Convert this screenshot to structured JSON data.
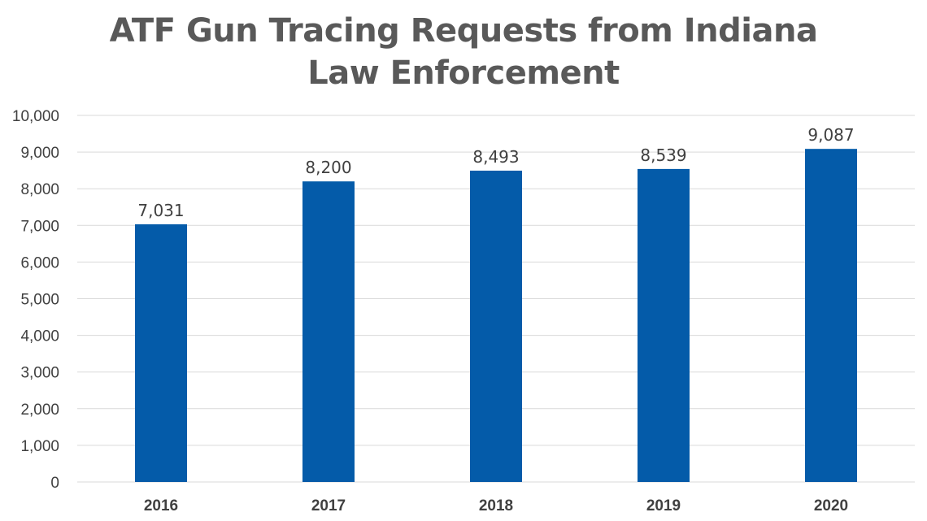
{
  "title": {
    "line1": "ATF Gun Tracing Requests from Indiana",
    "line2": "Law Enforcement"
  },
  "colors": {
    "bar": "#045BA9",
    "grid": "#d9d9d9",
    "text": "#404040",
    "title": "#595959"
  },
  "chart_data": {
    "type": "bar",
    "title": "ATF Gun Tracing Requests from Indiana Law Enforcement",
    "categories": [
      "2016",
      "2017",
      "2018",
      "2019",
      "2020"
    ],
    "values": [
      7031,
      8200,
      8493,
      8539,
      9087
    ],
    "data_labels": [
      "7,031",
      "8,200",
      "8,493",
      "8,539",
      "9,087"
    ],
    "xlabel": "",
    "ylabel": "",
    "ylim": [
      0,
      10000
    ],
    "y_ticks": [
      0,
      1000,
      2000,
      3000,
      4000,
      5000,
      6000,
      7000,
      8000,
      9000,
      10000
    ],
    "y_tick_labels": [
      "0",
      "1,000",
      "2,000",
      "3,000",
      "4,000",
      "5,000",
      "6,000",
      "7,000",
      "8,000",
      "9,000",
      "10,000"
    ],
    "grid": true,
    "legend": "none"
  }
}
